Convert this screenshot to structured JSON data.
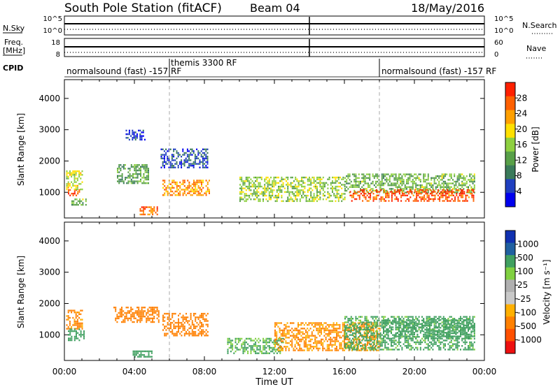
{
  "header": {
    "title": "South Pole Station (fitACF)",
    "beam": "Beam 04",
    "date": "18/May/2016"
  },
  "nsky_panel": {
    "label": "N.Sky",
    "right_label": "N.Search",
    "ytick_top": "10^5",
    "ytick_bottom": "10^0",
    "rtick_top": "10^5",
    "rtick_bottom": "10^0"
  },
  "freq_panel": {
    "label_line1": "Freq.",
    "label_line2": "[MHz]",
    "right_label": "Nave",
    "ytick_top": "18",
    "ytick_bottom": "8",
    "rtick_top": "60",
    "rtick_bottom": "0"
  },
  "cpid_panel": {
    "label": "CPID",
    "segments": [
      {
        "text": "normalsound (fast) -157 RF",
        "start_hour": 0
      },
      {
        "text": "themis 3300 RF",
        "start_hour": 6
      },
      {
        "text": "normalsound (fast) -157 RF",
        "start_hour": 18
      }
    ]
  },
  "colors": {
    "power_scale": [
      "#0000ee",
      "#2040c0",
      "#3a7a5a",
      "#58a048",
      "#8ed040",
      "#ffe000",
      "#ffa000",
      "#ff6000",
      "#ff2000"
    ],
    "velocity_scale": [
      "#ee1010",
      "#ff5000",
      "#ff8000",
      "#ffb000",
      "#c8c8c8",
      "#b0b0b0",
      "#80d040",
      "#40a060",
      "#2060a0",
      "#1030b0"
    ]
  },
  "chart_data": [
    {
      "type": "heatmap",
      "name": "power",
      "ylabel": "Slant Range [km]",
      "xlabel": "",
      "ylim": [
        180,
        4600
      ],
      "yticks": [
        "1000",
        "2000",
        "3000",
        "4000"
      ],
      "xlim_hours": [
        0,
        24
      ],
      "colorbar": {
        "label": "Power [dB]",
        "ticks": [
          "4",
          "8",
          "12",
          "16",
          "20",
          "24",
          "28"
        ],
        "range": [
          0,
          32
        ]
      },
      "regions": [
        {
          "t": [
            0.2,
            0.9
          ],
          "r": [
            900,
            1100
          ],
          "value": 28
        },
        {
          "t": [
            0.1,
            1.0
          ],
          "r": [
            1100,
            1700
          ],
          "value": 18
        },
        {
          "t": [
            0.4,
            1.2
          ],
          "r": [
            600,
            800
          ],
          "value": 14
        },
        {
          "t": [
            3.0,
            4.8
          ],
          "r": [
            1300,
            1900
          ],
          "value": 12
        },
        {
          "t": [
            3.5,
            4.6
          ],
          "r": [
            2700,
            3000
          ],
          "value": 4
        },
        {
          "t": [
            4.3,
            5.3
          ],
          "r": [
            300,
            550
          ],
          "value": 26
        },
        {
          "t": [
            5.5,
            8.2
          ],
          "r": [
            1800,
            2400
          ],
          "value": 6
        },
        {
          "t": [
            5.6,
            8.3
          ],
          "r": [
            900,
            1400
          ],
          "value": 24
        },
        {
          "t": [
            10.0,
            16.0
          ],
          "r": [
            700,
            1500
          ],
          "value": 16
        },
        {
          "t": [
            16.0,
            23.4
          ],
          "r": [
            1000,
            1600
          ],
          "value": 14
        },
        {
          "t": [
            16.3,
            23.4
          ],
          "r": [
            700,
            1100
          ],
          "value": 28
        }
      ]
    },
    {
      "type": "heatmap",
      "name": "velocity",
      "ylabel": "Slant Range [km]",
      "xlabel": "Time UT",
      "ylim": [
        180,
        4600
      ],
      "yticks": [
        "1000",
        "2000",
        "3000",
        "4000"
      ],
      "xticks": [
        "00:00",
        "04:00",
        "08:00",
        "12:00",
        "16:00",
        "20:00",
        "00:00"
      ],
      "xlim_hours": [
        0,
        24
      ],
      "colorbar": {
        "label": "Velocity [m s⁻¹]",
        "ticks": [
          "1000",
          "500",
          "100",
          "25",
          "-25",
          "-100",
          "-500",
          "-1000"
        ]
      },
      "regions": [
        {
          "t": [
            0.1,
            1.0
          ],
          "r": [
            1200,
            1800
          ],
          "value": -150
        },
        {
          "t": [
            0.2,
            1.1
          ],
          "r": [
            800,
            1200
          ],
          "value": 300
        },
        {
          "t": [
            2.8,
            5.4
          ],
          "r": [
            1400,
            1900
          ],
          "value": -200
        },
        {
          "t": [
            5.6,
            8.2
          ],
          "r": [
            1000,
            1700
          ],
          "value": -300
        },
        {
          "t": [
            3.9,
            5.0
          ],
          "r": [
            300,
            500
          ],
          "value": 200
        },
        {
          "t": [
            9.3,
            12.5
          ],
          "r": [
            400,
            900
          ],
          "value": 120
        },
        {
          "t": [
            12.0,
            18.0
          ],
          "r": [
            500,
            1400
          ],
          "value": -120
        },
        {
          "t": [
            16.0,
            23.4
          ],
          "r": [
            500,
            1600
          ],
          "value": 150
        },
        {
          "t": [
            18.2,
            23.4
          ],
          "r": [
            900,
            1500
          ],
          "value": 400
        }
      ]
    }
  ]
}
